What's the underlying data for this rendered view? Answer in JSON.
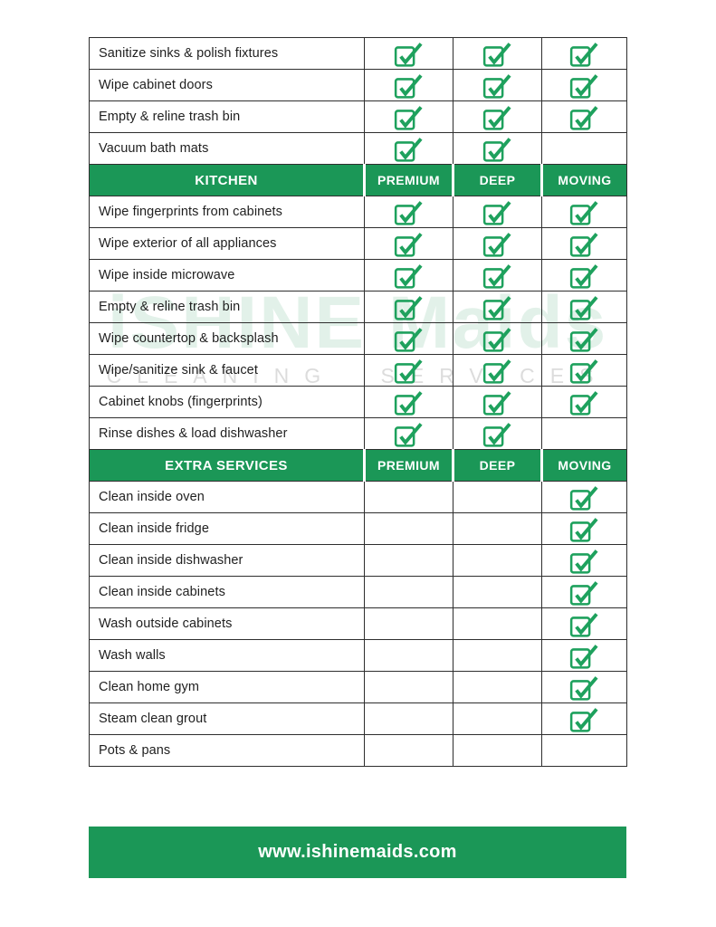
{
  "colors": {
    "green": "#1b9757",
    "check_green": "#1ea15d",
    "border": "#2e2e2e",
    "watermark_green": "rgba(30,150,88,0.13)"
  },
  "watermark": {
    "line1": "iSHINE Maids",
    "line2": "CLEANING SERVICES"
  },
  "footer": {
    "url": "www.ishinemaids.com"
  },
  "table": {
    "columns": [
      "PREMIUM",
      "DEEP",
      "MOVING"
    ],
    "check_icon": "checked-checkbox-icon",
    "sections": [
      {
        "header": null,
        "rows": [
          {
            "task": "Sanitize sinks & polish fixtures",
            "checks": [
              true,
              true,
              true
            ]
          },
          {
            "task": "Wipe cabinet doors",
            "checks": [
              true,
              true,
              true
            ]
          },
          {
            "task": "Empty & reline trash bin",
            "checks": [
              true,
              true,
              true
            ]
          },
          {
            "task": "Vacuum bath mats",
            "checks": [
              true,
              true,
              false
            ]
          }
        ]
      },
      {
        "header": "KITCHEN",
        "rows": [
          {
            "task": "Wipe fingerprints from cabinets",
            "checks": [
              true,
              true,
              true
            ]
          },
          {
            "task": "Wipe exterior of all appliances",
            "checks": [
              true,
              true,
              true
            ]
          },
          {
            "task": "Wipe inside microwave",
            "checks": [
              true,
              true,
              true
            ]
          },
          {
            "task": "Empty & reline trash bin",
            "checks": [
              true,
              true,
              true
            ]
          },
          {
            "task": "Wipe countertop & backsplash",
            "checks": [
              true,
              true,
              true
            ]
          },
          {
            "task": "Wipe/sanitize sink & faucet",
            "checks": [
              true,
              true,
              true
            ]
          },
          {
            "task": "Cabinet knobs (fingerprints)",
            "checks": [
              true,
              true,
              true
            ]
          },
          {
            "task": "Rinse dishes & load dishwasher",
            "checks": [
              true,
              true,
              false
            ]
          }
        ]
      },
      {
        "header": "EXTRA SERVICES",
        "rows": [
          {
            "task": "Clean inside oven",
            "checks": [
              false,
              false,
              true
            ]
          },
          {
            "task": "Clean inside fridge",
            "checks": [
              false,
              false,
              true
            ]
          },
          {
            "task": "Clean inside dishwasher",
            "checks": [
              false,
              false,
              true
            ]
          },
          {
            "task": "Clean inside cabinets",
            "checks": [
              false,
              false,
              true
            ]
          },
          {
            "task": "Wash outside cabinets",
            "checks": [
              false,
              false,
              true
            ]
          },
          {
            "task": "Wash walls",
            "checks": [
              false,
              false,
              true
            ]
          },
          {
            "task": "Clean home gym",
            "checks": [
              false,
              false,
              true
            ]
          },
          {
            "task": "Steam clean grout",
            "checks": [
              false,
              false,
              true
            ]
          },
          {
            "task": "Pots & pans",
            "checks": [
              false,
              false,
              false
            ]
          }
        ]
      }
    ]
  }
}
